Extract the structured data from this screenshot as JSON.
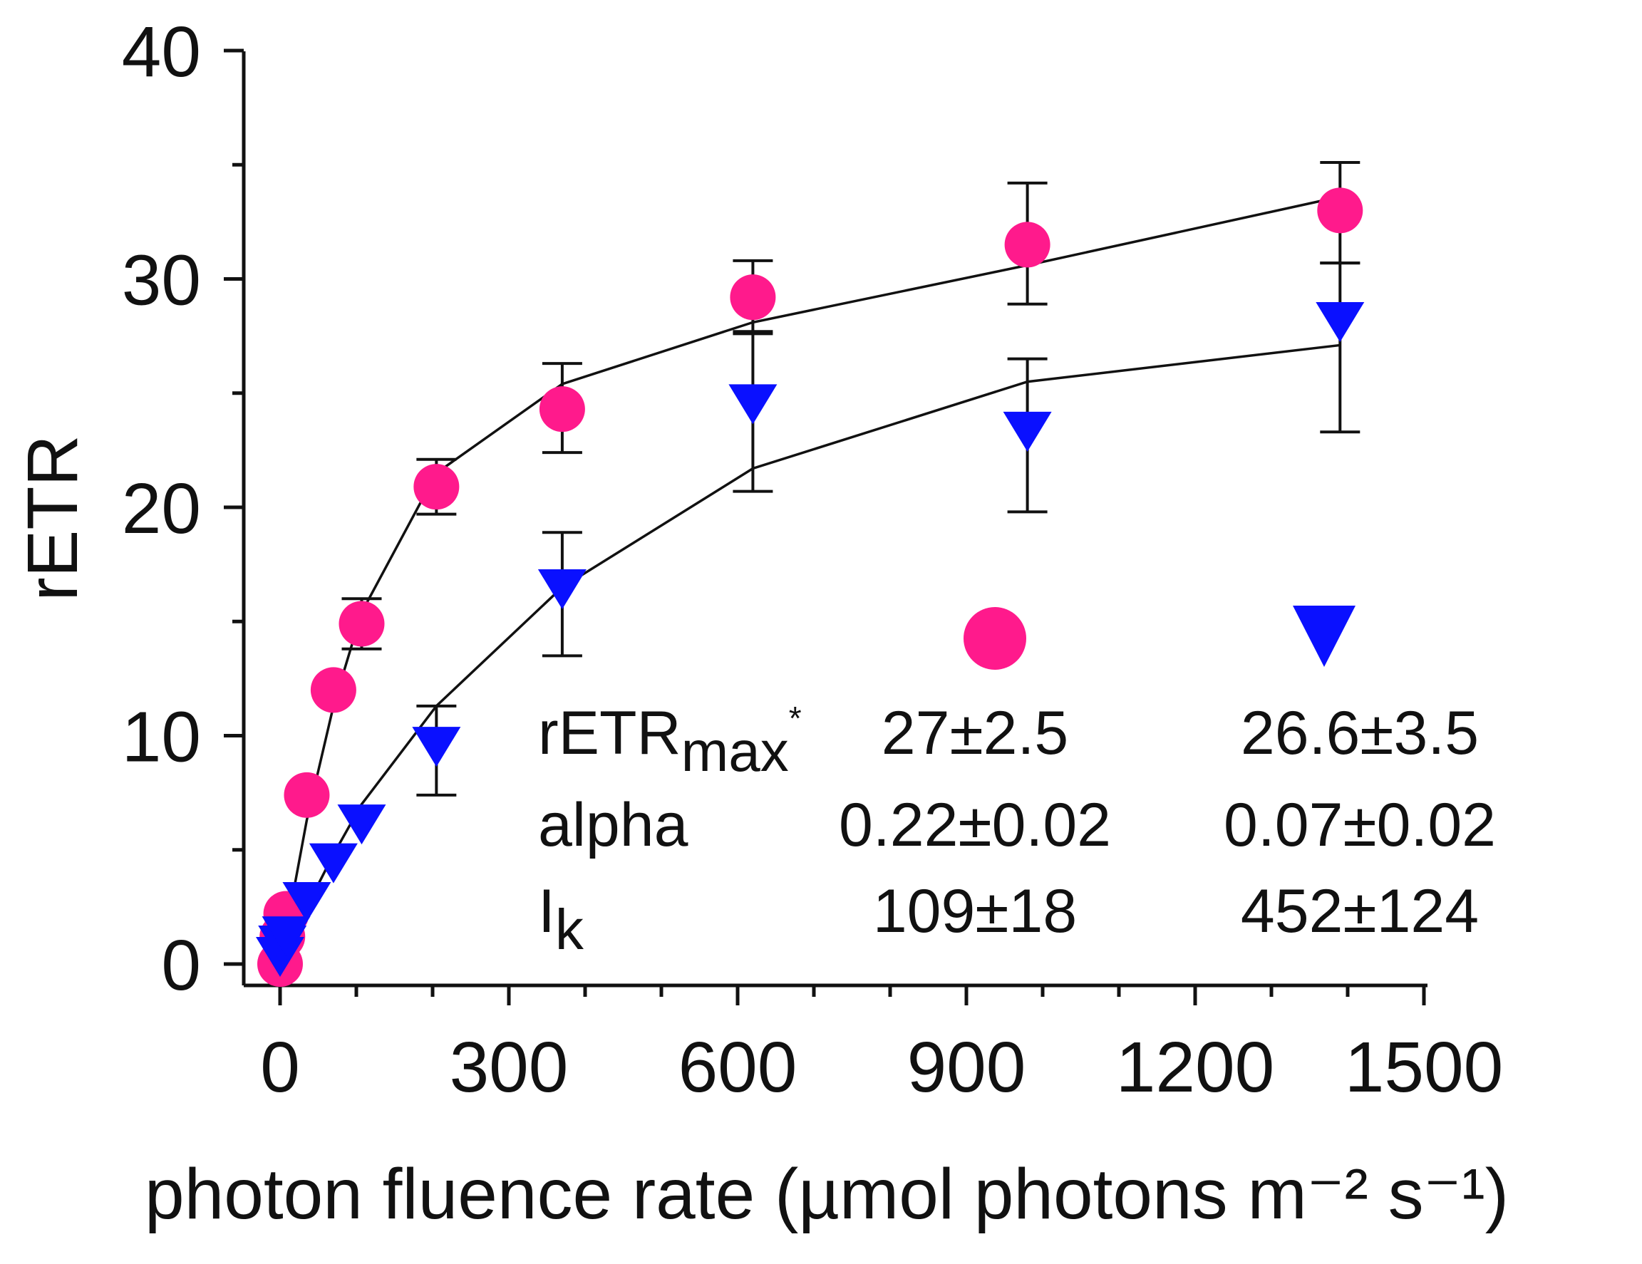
{
  "chart_data": {
    "type": "scatter",
    "title": "",
    "xlabel": "photon fluence rate (µmol photons m⁻² s⁻¹)",
    "ylabel": "rETR",
    "xlim": [
      -40,
      1500
    ],
    "ylim": [
      -1,
      40
    ],
    "x_ticks": [
      0,
      300,
      600,
      900,
      1200,
      1500
    ],
    "x_tick_labels": [
      "0",
      "300",
      "600",
      "900",
      "1200",
      "1500"
    ],
    "x_minor_step": 100,
    "y_ticks": [
      0,
      10,
      20,
      30,
      40
    ],
    "y_tick_labels": [
      "0",
      "10",
      "20",
      "30",
      "40"
    ],
    "y_minor_step": 5,
    "grid": false,
    "series": [
      {
        "name": "circle",
        "marker": "circle",
        "color": "#ff1a8c",
        "points": [
          {
            "x": 0,
            "y": 0
          },
          {
            "x": 3,
            "y": 1.2
          },
          {
            "x": 8,
            "y": 2.2
          },
          {
            "x": 35,
            "y": 7.4
          },
          {
            "x": 70,
            "y": 12
          },
          {
            "x": 107,
            "y": 14.9
          },
          {
            "x": 205,
            "y": 20.9
          },
          {
            "x": 370,
            "y": 24.3
          },
          {
            "x": 620,
            "y": 29.2
          },
          {
            "x": 980,
            "y": 31.5
          },
          {
            "x": 1390,
            "y": 33
          }
        ],
        "error_bars": [
          {
            "x": 107,
            "low": 13.8,
            "high": 16
          },
          {
            "x": 205,
            "low": 19.7,
            "high": 22.1
          },
          {
            "x": 370,
            "low": 22.4,
            "high": 26.3
          },
          {
            "x": 620,
            "low": 27.7,
            "high": 30.8
          },
          {
            "x": 980,
            "low": 28.9,
            "high": 34.2
          },
          {
            "x": 1390,
            "low": 30.7,
            "high": 35.1
          }
        ],
        "fit": {
          "x": [
            0,
            35,
            70,
            107,
            205,
            370,
            620,
            980,
            1390
          ],
          "y": [
            0,
            6.3,
            11.3,
            15.4,
            21.5,
            25.4,
            28.1,
            30.6,
            33.6
          ]
        }
      },
      {
        "name": "triangle",
        "marker": "triangle-down",
        "color": "#0a10ff",
        "points": [
          {
            "x": 0,
            "y": 0.4
          },
          {
            "x": 3,
            "y": 0.9
          },
          {
            "x": 8,
            "y": 1.3
          },
          {
            "x": 35,
            "y": 2.8
          },
          {
            "x": 70,
            "y": 4.5
          },
          {
            "x": 107,
            "y": 6.2
          },
          {
            "x": 205,
            "y": 9.6
          },
          {
            "x": 370,
            "y": 16.5
          },
          {
            "x": 620,
            "y": 24.6
          },
          {
            "x": 980,
            "y": 23.4
          },
          {
            "x": 1390,
            "y": 28.2
          }
        ],
        "error_bars": [
          {
            "x": 205,
            "low": 7.4,
            "high": 11.3
          },
          {
            "x": 370,
            "low": 13.5,
            "high": 18.9
          },
          {
            "x": 620,
            "low": 20.7,
            "high": 27.6
          },
          {
            "x": 980,
            "low": 19.8,
            "high": 26.5
          },
          {
            "x": 1390,
            "low": 23.3,
            "high": 30.7
          }
        ],
        "fit": {
          "x": [
            0,
            35,
            70,
            107,
            205,
            370,
            620,
            980,
            1390
          ],
          "y": [
            0,
            2.5,
            4.8,
            7.0,
            11.3,
            16.5,
            21.7,
            25.5,
            27.1
          ]
        }
      }
    ],
    "parameter_table": {
      "rows": [
        {
          "label": "rETR",
          "sub": "max",
          "sup": "*",
          "circle": "27±2.5",
          "triangle": "26.6±3.5"
        },
        {
          "label": "alpha",
          "sub": "",
          "sup": "",
          "circle": "0.22±0.02",
          "triangle": "0.07±0.02"
        },
        {
          "label": "I",
          "sub": "k",
          "sup": "",
          "circle": "109±18",
          "triangle": "452±124"
        }
      ]
    }
  }
}
